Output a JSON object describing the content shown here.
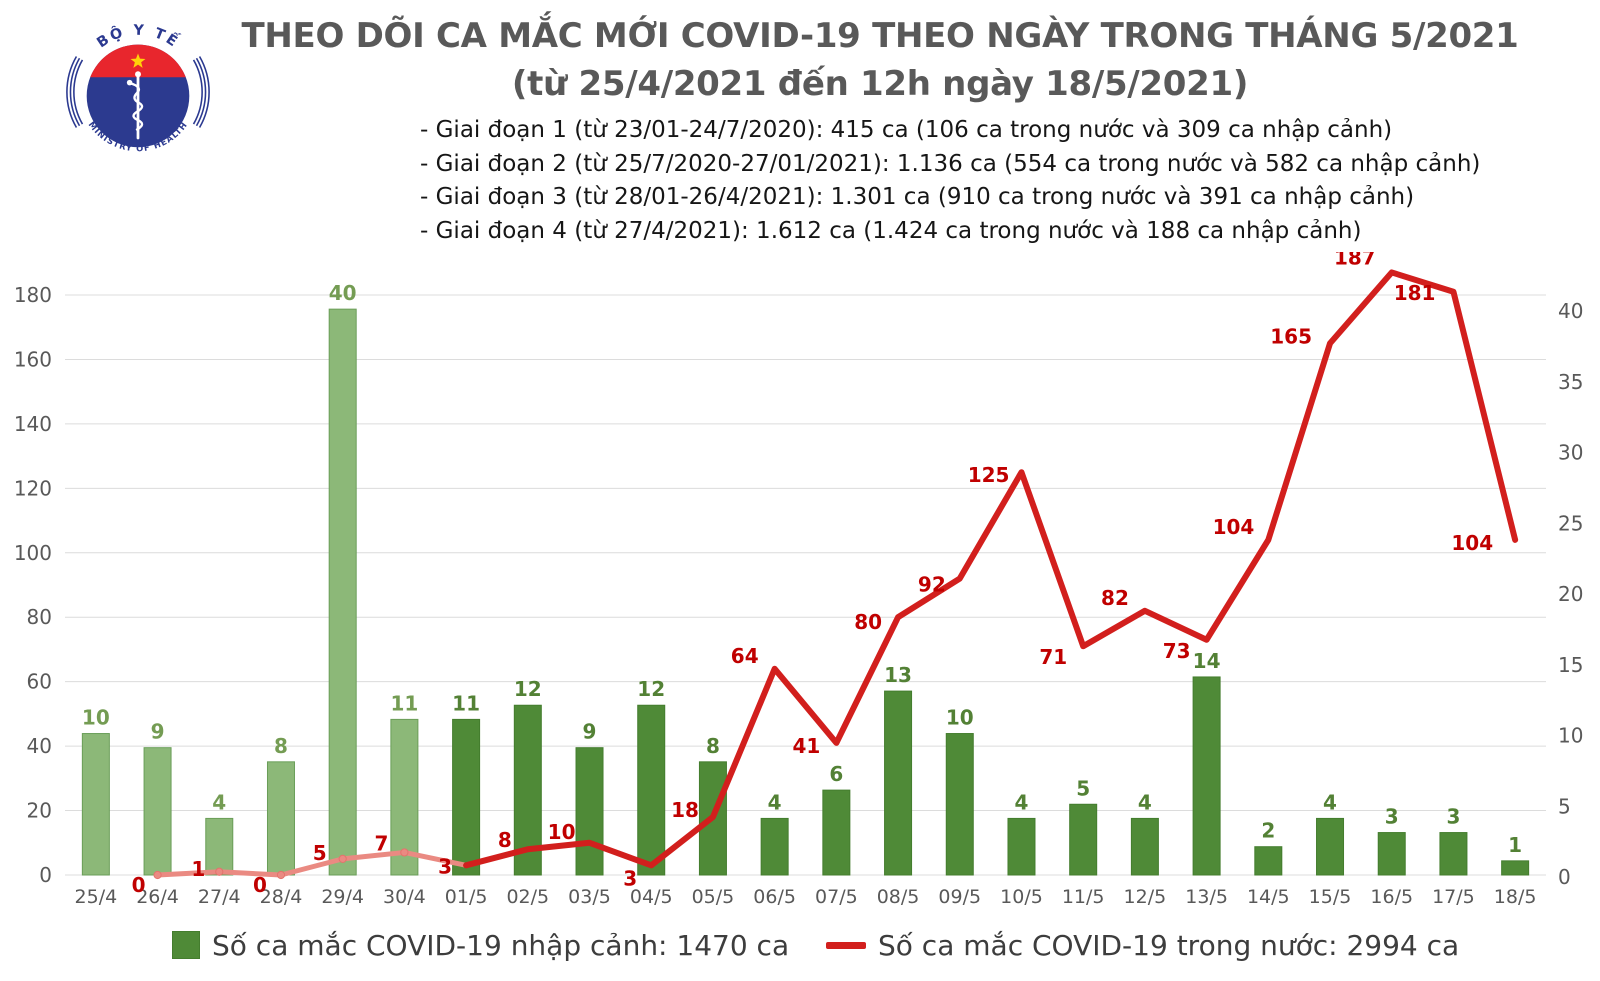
{
  "header": {
    "title_line1": "THEO DÕI CA MẮC MỚI COVID-19 THEO NGÀY TRONG THÁNG 5/2021",
    "title_line2": "(từ 25/4/2021 đến 12h ngày 18/5/2021)",
    "bullets": [
      "- Giai đoạn 1 (từ 23/01-24/7/2020): 415 ca (106 ca trong nước và 309 ca nhập cảnh)",
      "- Giai đoạn 2 (từ 25/7/2020-27/01/2021): 1.136 ca (554 ca trong nước và 582 ca nhập cảnh)",
      "- Giai đoạn 3 (từ 28/01-26/4/2021): 1.301 ca (910 ca trong nước và 391 ca nhập cảnh)",
      "- Giai đoạn 4 (từ 27/4/2021): 1.612 ca (1.424 ca trong nước và 188 ca nhập cảnh)"
    ]
  },
  "logo": {
    "top_text": "BỘ Y TẾ",
    "bottom_text": "MINISTRY OF HEALTH"
  },
  "legend": {
    "imported": "Số ca mắc COVID-19 nhập cảnh: 1470 ca",
    "domestic": "Số ca mắc COVID-19 trong nước: 2994 ca"
  },
  "colors": {
    "title": "#595959",
    "axis_text": "#595959",
    "grid": "#dcdcdc",
    "bar_light": "#8cb878",
    "bar_light_border": "#6a9e58",
    "bar_dark": "#4f8a37",
    "bar_dark_border": "#447d2e",
    "bar_label_light": "#749c53",
    "bar_label_dark": "#538135",
    "line_light": "#ea8a82",
    "line_dark": "#d21f1d",
    "line_label": "#c00000",
    "logo_blue": "#2b3990",
    "logo_red": "#e8262d",
    "logo_star": "#ffd10a"
  },
  "chart_data": {
    "type": "combo",
    "categories": [
      "25/4",
      "26/4",
      "27/4",
      "28/4",
      "29/4",
      "30/4",
      "01/5",
      "02/5",
      "03/5",
      "04/5",
      "05/5",
      "06/5",
      "07/5",
      "08/5",
      "09/5",
      "10/5",
      "11/5",
      "12/5",
      "13/5",
      "14/5",
      "15/5",
      "16/5",
      "17/5",
      "18/5"
    ],
    "series": [
      {
        "name": "Số ca mắc COVID-19 nhập cảnh",
        "type": "bar",
        "axis": "right",
        "values": [
          10,
          9,
          4,
          8,
          40,
          11,
          11,
          12,
          9,
          12,
          8,
          4,
          6,
          13,
          10,
          4,
          5,
          4,
          14,
          2,
          4,
          3,
          3,
          1
        ]
      },
      {
        "name": "Số ca mắc COVID-19 trong nước",
        "type": "line",
        "axis": "left",
        "values": [
          null,
          0,
          1,
          0,
          5,
          7,
          3,
          8,
          10,
          3,
          18,
          64,
          41,
          80,
          92,
          125,
          71,
          82,
          73,
          104,
          165,
          187,
          181,
          104
        ]
      }
    ],
    "left_axis": {
      "min": 0,
      "max": 180,
      "step": 20
    },
    "right_axis": {
      "min": 0,
      "max": 40,
      "step": 5
    },
    "grid": true,
    "legend_position": "bottom",
    "layout": {
      "phase_split_index": 6,
      "right_axis_effective_max": 41,
      "line_label_offsets": [
        null,
        [
          -12,
          17
        ],
        [
          -14,
          4
        ],
        [
          -14,
          17
        ],
        [
          -16,
          1
        ],
        [
          -16,
          -2
        ],
        [
          -14,
          8
        ],
        [
          -16,
          -2
        ],
        [
          -14,
          -4
        ],
        [
          -14,
          20
        ],
        [
          -14,
          0
        ],
        [
          -16,
          -6
        ],
        [
          -16,
          10
        ],
        [
          -16,
          12
        ],
        [
          -14,
          13
        ],
        [
          -12,
          10
        ],
        [
          -16,
          18
        ],
        [
          -16,
          -6
        ],
        [
          -16,
          18
        ],
        [
          -14,
          -6
        ],
        [
          -18,
          0
        ],
        [
          -16,
          -8
        ],
        [
          -18,
          8
        ],
        [
          -22,
          10
        ]
      ]
    }
  }
}
